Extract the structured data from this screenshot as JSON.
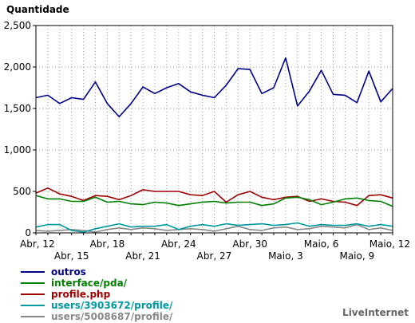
{
  "chart_data": {
    "type": "line",
    "ylabel": "Quantidade",
    "ylim": [
      0,
      2500
    ],
    "yticks": [
      0,
      500,
      1000,
      1500,
      2000,
      2500
    ],
    "ytick_labels": [
      "0",
      "500",
      "1,000",
      "1,500",
      "2,000",
      "2,500"
    ],
    "grid": true,
    "x_tick_labels_top": [
      {
        "label": "Abr, 12",
        "index": 0
      },
      {
        "label": "Abr, 18",
        "index": 6
      },
      {
        "label": "Abr, 24",
        "index": 12
      },
      {
        "label": "Abr, 30",
        "index": 18
      },
      {
        "label": "Maio, 6",
        "index": 24
      },
      {
        "label": "Maio, 12",
        "index": 30
      }
    ],
    "x_tick_labels_bottom": [
      {
        "label": "Abr, 15",
        "index": 3
      },
      {
        "label": "Abr, 21",
        "index": 9
      },
      {
        "label": "Abr, 27",
        "index": 15
      },
      {
        "label": "Maio, 3",
        "index": 21
      },
      {
        "label": "Maio, 9",
        "index": 27
      }
    ],
    "series": [
      {
        "name": "outros",
        "color": "#00008b",
        "values": [
          1630,
          1660,
          1560,
          1630,
          1610,
          1820,
          1560,
          1400,
          1560,
          1760,
          1680,
          1750,
          1800,
          1700,
          1660,
          1630,
          1780,
          1980,
          1970,
          1680,
          1750,
          2110,
          1530,
          1710,
          1960,
          1670,
          1660,
          1570,
          1950,
          1580,
          1740
        ]
      },
      {
        "name": "interface/pda/",
        "color": "#008000",
        "values": [
          450,
          410,
          410,
          380,
          380,
          430,
          370,
          380,
          350,
          340,
          370,
          360,
          330,
          350,
          370,
          380,
          360,
          370,
          370,
          330,
          350,
          420,
          430,
          400,
          340,
          370,
          410,
          420,
          390,
          380,
          320
        ]
      },
      {
        "name": "profile.php",
        "color": "#a00000",
        "values": [
          480,
          540,
          470,
          440,
          390,
          450,
          440,
          400,
          450,
          520,
          500,
          500,
          500,
          460,
          450,
          500,
          370,
          460,
          500,
          430,
          400,
          430,
          440,
          380,
          410,
          380,
          370,
          330,
          450,
          460,
          420
        ]
      },
      {
        "name": "users/3903672/profile/",
        "color": "#009aa0",
        "values": [
          70,
          100,
          100,
          30,
          10,
          50,
          80,
          110,
          70,
          80,
          80,
          100,
          40,
          80,
          100,
          80,
          110,
          90,
          100,
          110,
          90,
          100,
          120,
          80,
          100,
          90,
          90,
          110,
          80,
          100,
          80
        ]
      },
      {
        "name": "users/5008687/profile/",
        "color": "#888888",
        "values": [
          30,
          20,
          30,
          40,
          30,
          10,
          40,
          60,
          40,
          60,
          50,
          30,
          40,
          50,
          40,
          20,
          50,
          80,
          40,
          30,
          60,
          70,
          40,
          50,
          80,
          70,
          60,
          100,
          40,
          60,
          30
        ]
      }
    ]
  },
  "watermark": "LiveInternet"
}
